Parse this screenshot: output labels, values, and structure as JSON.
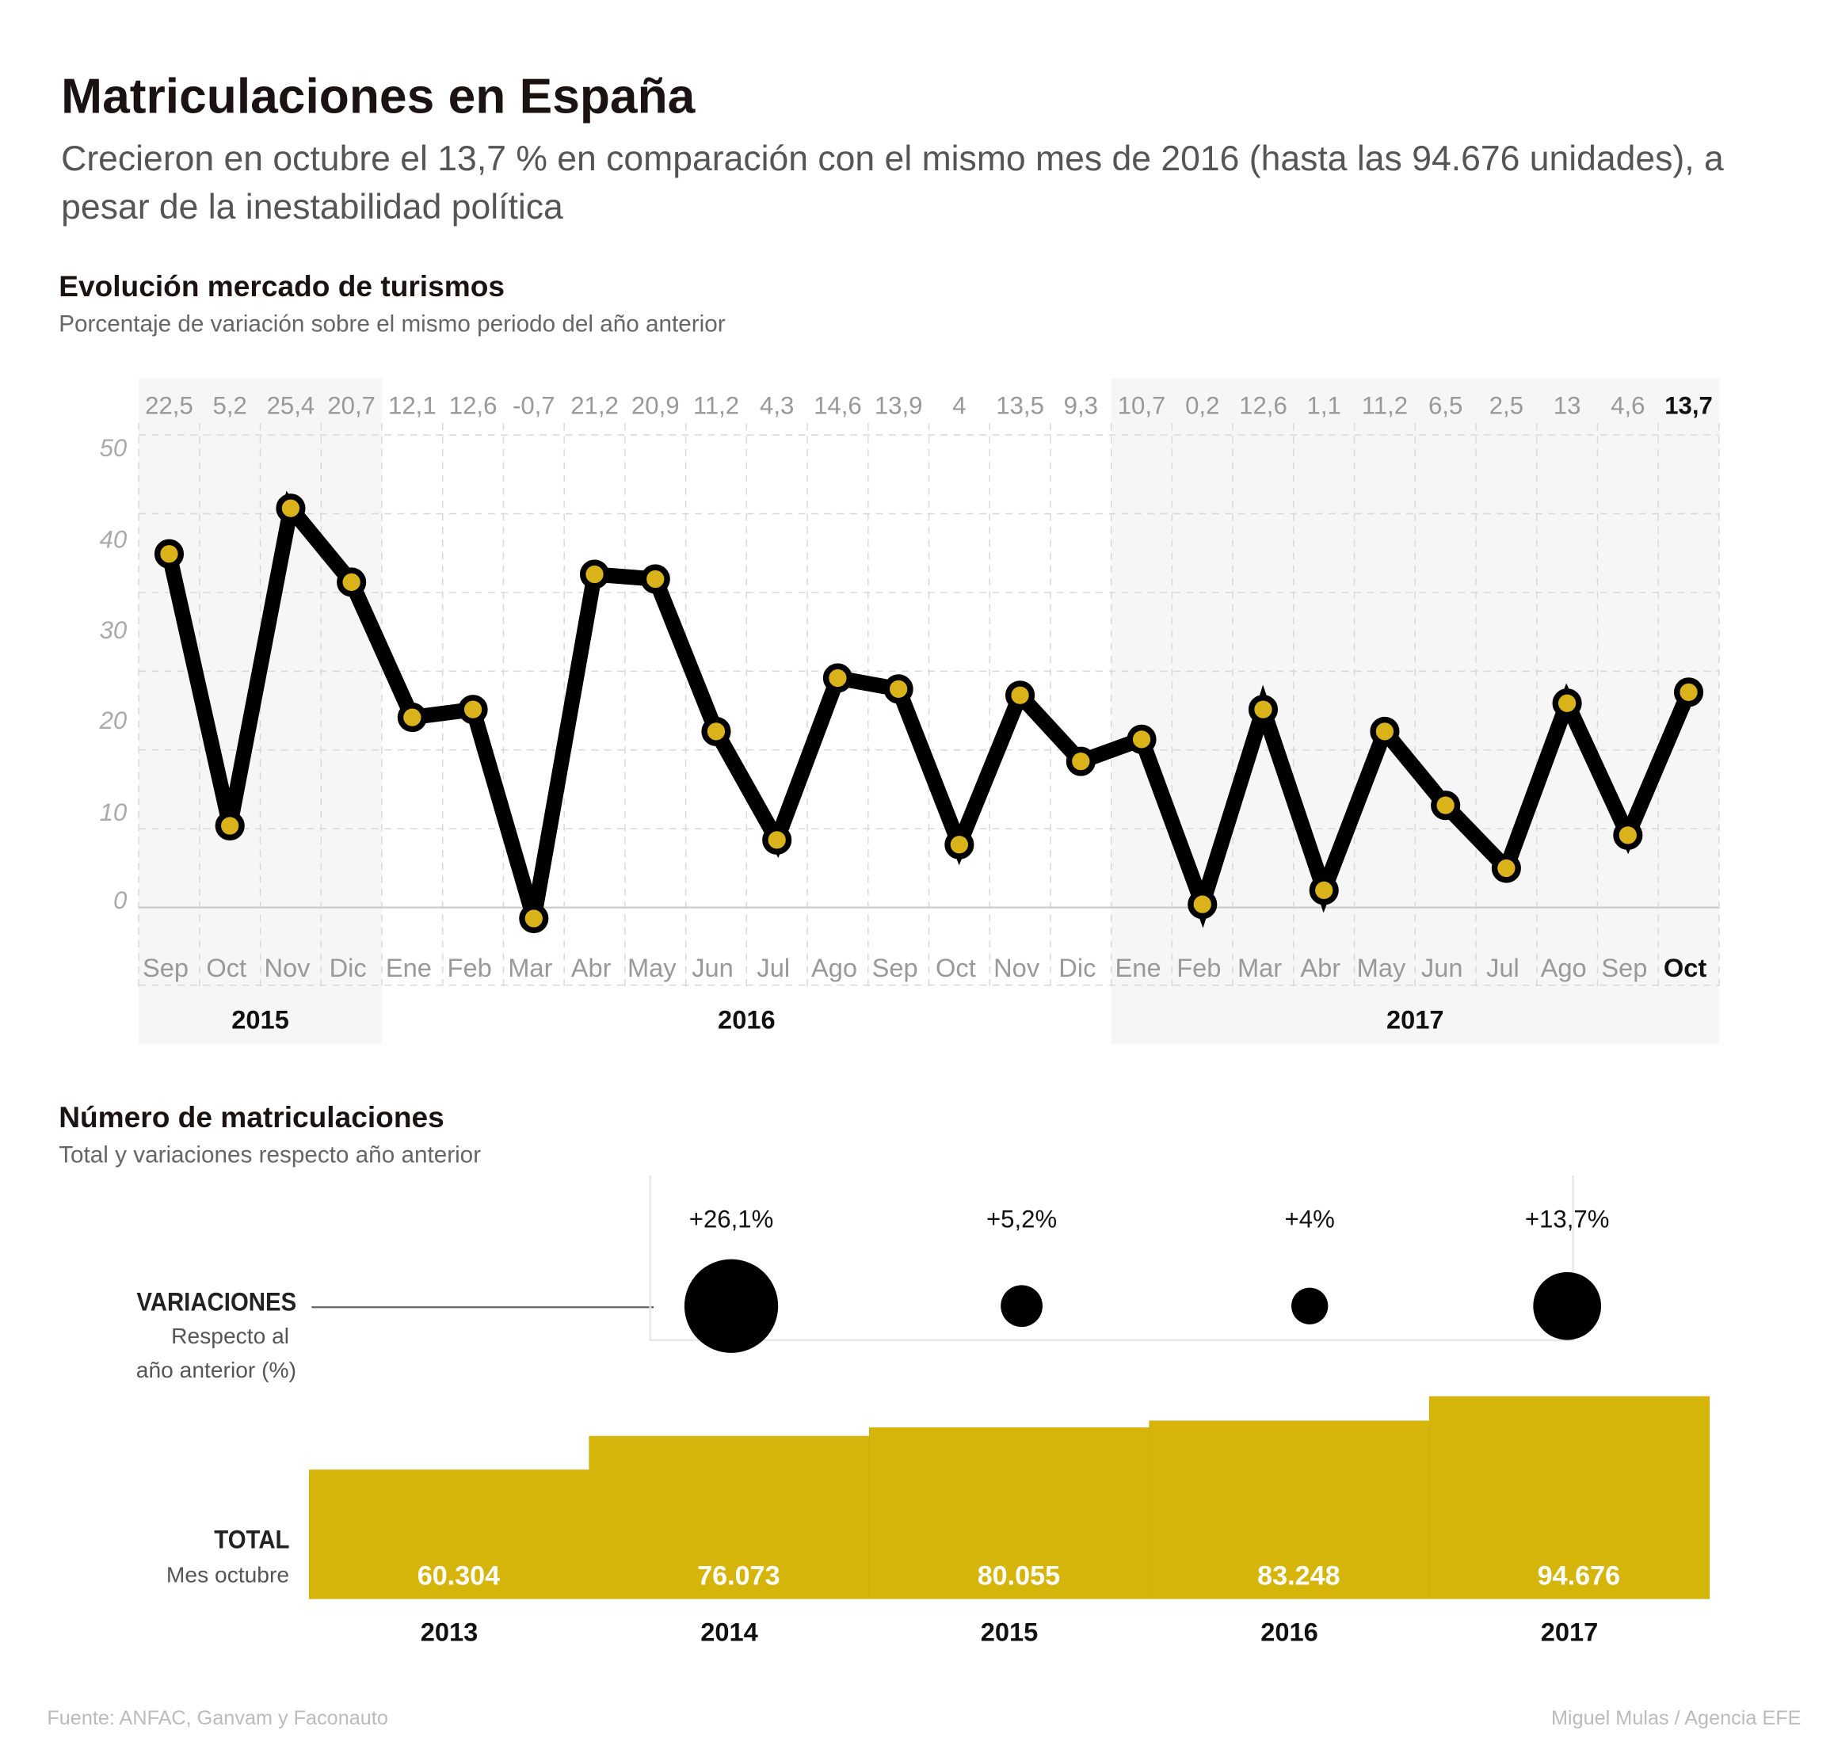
{
  "title": "Matriculaciones en España",
  "subtitle": "Crecieron en octubre el 13,7 % en comparación con el mismo mes de 2016 (hasta las 94.676 unidades), a pesar de la inestabilidad política",
  "colors": {
    "accent": "#d6b50b",
    "line": "#000000",
    "shade": "#f6f6f6",
    "grid": "#d8d8d8"
  },
  "chart_data": [
    {
      "type": "line",
      "title": "Evolución mercado de turismos",
      "subtitle": "Porcentaje de variación sobre el mismo periodo del año anterior",
      "categories": [
        "Sep",
        "Oct",
        "Nov",
        "Dic",
        "Ene",
        "Feb",
        "Mar",
        "Abr",
        "May",
        "Jun",
        "Jul",
        "Ago",
        "Sep",
        "Oct",
        "Nov",
        "Dic",
        "Ene",
        "Feb",
        "Mar",
        "Abr",
        "May",
        "Jun",
        "Jul",
        "Ago",
        "Sep",
        "Oct"
      ],
      "value_labels": [
        "22,5",
        "5,2",
        "25,4",
        "20,7",
        "12,1",
        "12,6",
        "-0,7",
        "21,2",
        "20,9",
        "11,2",
        "4,3",
        "14,6",
        "13,9",
        "4",
        "13,5",
        "9,3",
        "10,7",
        "0,2",
        "12,6",
        "1,1",
        "11,2",
        "6,5",
        "2,5",
        "13",
        "4,6",
        "13,7"
      ],
      "values": [
        22.5,
        5.2,
        25.4,
        20.7,
        12.1,
        12.6,
        -0.7,
        21.2,
        20.9,
        11.2,
        4.3,
        14.6,
        13.9,
        4,
        13.5,
        9.3,
        10.7,
        0.2,
        12.6,
        1.1,
        11.2,
        6.5,
        2.5,
        13,
        4.6,
        13.7
      ],
      "y_tick_labels": [
        "50",
        "40",
        "30",
        "20",
        "10",
        "0"
      ],
      "years": [
        {
          "label": "2015",
          "months": 4
        },
        {
          "label": "2016",
          "months": 12
        },
        {
          "label": "2017",
          "months": 10
        }
      ],
      "grid": true,
      "highlight_last": true
    },
    {
      "type": "bar",
      "title": "Número de matriculaciones",
      "subtitle": "Total y variaciones respecto año anterior",
      "categories": [
        "2013",
        "2014",
        "2015",
        "2016",
        "2017"
      ],
      "values": [
        60304,
        76073,
        80055,
        83248,
        94676
      ],
      "value_labels": [
        "60.304",
        "76.073",
        "80.055",
        "83.248",
        "94.676"
      ],
      "variations": [
        null,
        26.1,
        5.2,
        4,
        13.7
      ],
      "variation_labels": [
        "",
        "+26,1%",
        "+5,2%",
        "+4%",
        "+13,7%"
      ],
      "variations_label": "VARIACIONES",
      "variations_sub1": "Respecto al",
      "variations_sub2": "año anterior (%)",
      "total_label": "TOTAL",
      "total_sub": "Mes octubre"
    }
  ],
  "footer": {
    "source": "Fuente: ANFAC, Ganvam y Faconauto",
    "credit": "Miguel Mulas / Agencia EFE"
  }
}
